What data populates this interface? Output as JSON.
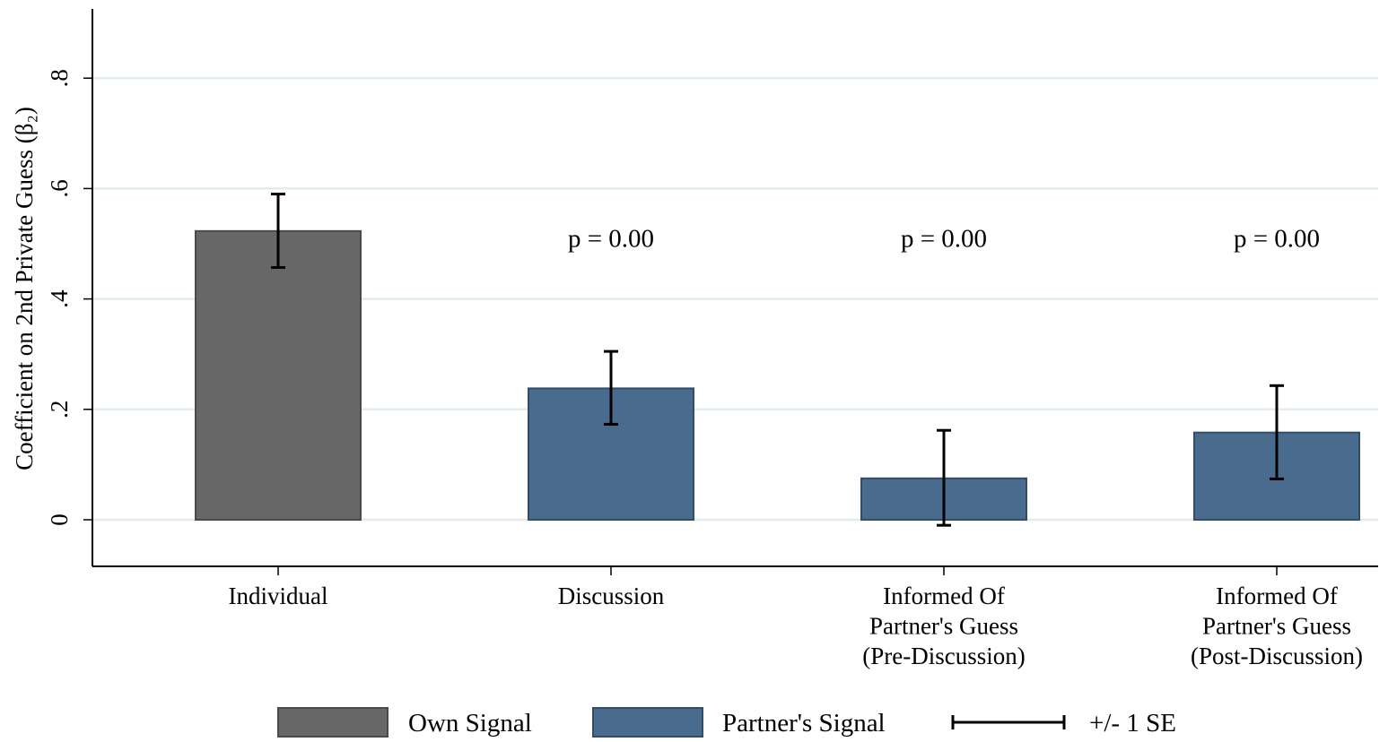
{
  "chart_data": {
    "type": "bar",
    "ylabel": "Coefficient on 2nd Private Guess (β₂)",
    "ylim": [
      -0.08,
      0.93
    ],
    "yticks": [
      {
        "value": 0,
        "label": "0"
      },
      {
        "value": 0.2,
        "label": ".2"
      },
      {
        "value": 0.4,
        "label": ".4"
      },
      {
        "value": 0.6,
        "label": ".6"
      },
      {
        "value": 0.8,
        "label": ".8"
      }
    ],
    "grid": true,
    "categories": [
      [
        "Individual"
      ],
      [
        "Discussion"
      ],
      [
        "Informed Of",
        "Partner's Guess",
        "(Pre-Discussion)"
      ],
      [
        "Informed Of",
        "Partner's Guess",
        "(Post-Discussion)"
      ]
    ],
    "bars": [
      {
        "series": "Own Signal",
        "value": 0.523,
        "se_low": 0.457,
        "se_high": 0.59,
        "annotation": ""
      },
      {
        "series": "Partner's Signal",
        "value": 0.238,
        "se_low": 0.173,
        "se_high": 0.305,
        "annotation": "p = 0.00"
      },
      {
        "series": "Partner's Signal",
        "value": 0.075,
        "se_low": -0.01,
        "se_high": 0.162,
        "annotation": "p = 0.00"
      },
      {
        "series": "Partner's Signal",
        "value": 0.158,
        "se_low": 0.074,
        "se_high": 0.243,
        "annotation": "p = 0.00"
      }
    ],
    "annotation_y": 0.5,
    "series": [
      {
        "name": "Own Signal",
        "color": "#676767"
      },
      {
        "name": "Partner's Signal",
        "color": "#486b8e"
      }
    ],
    "legend": {
      "position": "bottom",
      "items": [
        {
          "label": "Own Signal",
          "kind": "swatch",
          "color": "#676767"
        },
        {
          "label": "Partner's Signal",
          "kind": "swatch",
          "color": "#486b8e"
        },
        {
          "label": "+/- 1 SE",
          "kind": "errorbar"
        }
      ]
    }
  }
}
